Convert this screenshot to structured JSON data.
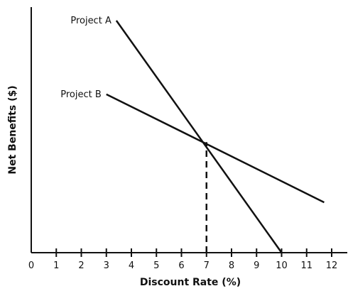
{
  "chart_data": {
    "type": "line",
    "xlabel": "Discount Rate (%)",
    "ylabel": "Net Benefits ($)",
    "xlim": [
      0,
      12.5
    ],
    "ylim": [
      0,
      10
    ],
    "x_ticks": [
      "0",
      "1",
      "2",
      "3",
      "4",
      "5",
      "6",
      "7",
      "8",
      "9",
      "10",
      "11",
      "12"
    ],
    "grid": false,
    "y_ticks_shown": false,
    "series": [
      {
        "name": "Project A",
        "points": [
          [
            3.4,
            9.45
          ],
          [
            10,
            0
          ]
        ]
      },
      {
        "name": "Project B",
        "points": [
          [
            3,
            6.45
          ],
          [
            11.7,
            2.05
          ]
        ]
      }
    ],
    "reference_lines": [
      {
        "style": "dashed",
        "x": 7,
        "y_from": 0,
        "y_to": 4.5
      }
    ],
    "colors": {
      "line": "#111111",
      "background": "#ffffff"
    }
  }
}
